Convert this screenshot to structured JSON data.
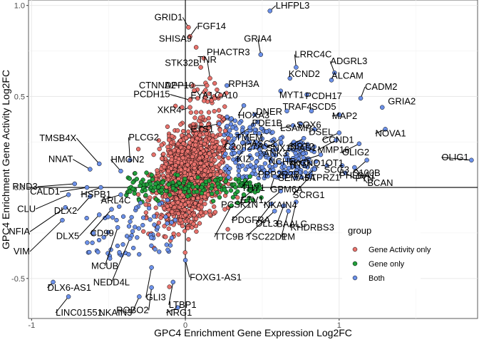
{
  "chart_data": {
    "type": "scatter",
    "xlabel": "GPC4 Enrichment Gene Expression Log2FC",
    "ylabel": "GPC4 Enrichment Gene Activity Log2FC",
    "xlim": [
      -1.02,
      1.9
    ],
    "ylim": [
      -0.72,
      1.03
    ],
    "xticks": [
      -1,
      0,
      1
    ],
    "yticks": [
      -0.5,
      0.0,
      0.5,
      1.0
    ],
    "xtick_labels": [
      "-1",
      "0",
      "1"
    ],
    "ytick_labels": [
      "-0.5",
      "0.0",
      "0.5",
      "1.0"
    ],
    "grid": true,
    "reference_lines": {
      "x": 0,
      "y": 0
    },
    "legend": {
      "title": "group",
      "placement": "bottom-right",
      "entries": [
        {
          "name": "Gene Activity only",
          "color": "#e8726c"
        },
        {
          "name": "Gene only",
          "color": "#22a03c"
        },
        {
          "name": "Both",
          "color": "#6b90e8"
        }
      ]
    },
    "labeled_points": [
      {
        "gene": "LHFPL3",
        "x": 0.55,
        "y": 0.97,
        "group": "Both"
      },
      {
        "gene": "GRID1",
        "x": 0.02,
        "y": 0.88,
        "group": "Gene Activity only"
      },
      {
        "gene": "FGF14",
        "x": 0.03,
        "y": 0.83,
        "group": "Gene Activity only"
      },
      {
        "gene": "SHISA9",
        "x": 0.07,
        "y": 0.77,
        "group": "Gene Activity only"
      },
      {
        "gene": "GRIA4",
        "x": 0.49,
        "y": 0.73,
        "group": "Both"
      },
      {
        "gene": "PHACTR3",
        "x": 0.12,
        "y": 0.71,
        "group": "Gene Activity only"
      },
      {
        "gene": "STK32B",
        "x": 0.1,
        "y": 0.66,
        "group": "Gene Activity only"
      },
      {
        "gene": "LRRC4C",
        "x": 0.72,
        "y": 0.66,
        "group": "Both"
      },
      {
        "gene": "ADGRL3",
        "x": 0.97,
        "y": 0.63,
        "group": "Both"
      },
      {
        "gene": "TNR",
        "x": 0.16,
        "y": 0.6,
        "group": "Gene Activity only"
      },
      {
        "gene": "KCND2",
        "x": 0.68,
        "y": 0.6,
        "group": "Both"
      },
      {
        "gene": "ALCAM",
        "x": 0.95,
        "y": 0.59,
        "group": "Both"
      },
      {
        "gene": "CTNNA2",
        "x": 0.05,
        "y": 0.56,
        "group": "Gene Activity only"
      },
      {
        "gene": "DPP10",
        "x": 0.14,
        "y": 0.56,
        "group": "Gene Activity only"
      },
      {
        "gene": "RPH3A",
        "x": 0.27,
        "y": 0.56,
        "group": "Both"
      },
      {
        "gene": "MYT1",
        "x": 0.62,
        "y": 0.53,
        "group": "Both"
      },
      {
        "gene": "PCDH17",
        "x": 0.79,
        "y": 0.51,
        "group": "Both"
      },
      {
        "gene": "CADM2",
        "x": 1.14,
        "y": 0.49,
        "group": "Both"
      },
      {
        "gene": "PCDH15",
        "x": 0.03,
        "y": 0.48,
        "group": "Gene Activity only"
      },
      {
        "gene": "EYA1",
        "x": 0.08,
        "y": 0.49,
        "group": "Gene Activity only"
      },
      {
        "gene": "CA10",
        "x": 0.19,
        "y": 0.49,
        "group": "Gene Activity only"
      },
      {
        "gene": "HOXA3",
        "x": 0.38,
        "y": 0.45,
        "group": "Both"
      },
      {
        "gene": "DNER",
        "x": 0.45,
        "y": 0.4,
        "group": "Both"
      },
      {
        "gene": "TRAF4",
        "x": 0.66,
        "y": 0.42,
        "group": "Both"
      },
      {
        "gene": "SCD5",
        "x": 0.82,
        "y": 0.42,
        "group": "Both"
      },
      {
        "gene": "MAP2",
        "x": 1.0,
        "y": 0.4,
        "group": "Both"
      },
      {
        "gene": "GRIA2",
        "x": 1.28,
        "y": 0.44,
        "group": "Both"
      },
      {
        "gene": "XKR4",
        "x": 0.03,
        "y": 0.44,
        "group": "Gene Activity only"
      },
      {
        "gene": "ETS1",
        "x": 0.22,
        "y": 0.35,
        "group": "Both"
      },
      {
        "gene": "TMEM",
        "x": 0.42,
        "y": 0.33,
        "group": "Both"
      },
      {
        "gene": "PDE1B",
        "x": 0.47,
        "y": 0.36,
        "group": "Both"
      },
      {
        "gene": "LSAMP",
        "x": 0.7,
        "y": 0.34,
        "group": "Both"
      },
      {
        "gene": "SOX6",
        "x": 0.75,
        "y": 0.35,
        "group": "Both"
      },
      {
        "gene": "DSEL",
        "x": 0.84,
        "y": 0.32,
        "group": "Both"
      },
      {
        "gene": "CCND1",
        "x": 1.0,
        "y": 0.3,
        "group": "Both"
      },
      {
        "gene": "NOVA1",
        "x": 1.3,
        "y": 0.32,
        "group": "Both"
      },
      {
        "gene": "C2orf27A",
        "x": 0.28,
        "y": 0.27,
        "group": "Gene Activity only"
      },
      {
        "gene": "ASC2",
        "x": 0.4,
        "y": 0.27,
        "group": "Both"
      },
      {
        "gene": "SNX10-AS1",
        "x": 0.62,
        "y": 0.27,
        "group": "Both"
      },
      {
        "gene": "SIRT2",
        "x": 0.77,
        "y": 0.27,
        "group": "Both"
      },
      {
        "gene": "MMP16",
        "x": 0.98,
        "y": 0.26,
        "group": "Both"
      },
      {
        "gene": "OLIG2",
        "x": 1.13,
        "y": 0.24,
        "group": "Both"
      },
      {
        "gene": "OLIG1",
        "x": 1.86,
        "y": 0.15,
        "group": "Both"
      },
      {
        "gene": "KIZ",
        "x": 0.38,
        "y": 0.21,
        "group": "Both"
      },
      {
        "gene": "ANK3",
        "x": 0.48,
        "y": 0.21,
        "group": "Both"
      },
      {
        "gene": "NCHE",
        "x": 0.57,
        "y": 0.18,
        "group": "Both"
      },
      {
        "gene": "NTM",
        "x": 0.7,
        "y": 0.16,
        "group": "Both"
      },
      {
        "gene": "KCNQ1OT1",
        "x": 0.88,
        "y": 0.18,
        "group": "Both"
      },
      {
        "gene": "S100B",
        "x": 1.18,
        "y": 0.15,
        "group": "Both"
      },
      {
        "gene": "SCG3",
        "x": 0.92,
        "y": 0.12,
        "group": "Both"
      },
      {
        "gene": "PHLDA1",
        "x": 1.02,
        "y": 0.12,
        "group": "Both"
      },
      {
        "gene": "BCAN",
        "x": 1.1,
        "y": 0.11,
        "group": "Both"
      },
      {
        "gene": "PPP2R2B",
        "x": 0.5,
        "y": 0.11,
        "group": "Both"
      },
      {
        "gene": "SEMA5A",
        "x": 0.64,
        "y": 0.09,
        "group": "Both"
      },
      {
        "gene": "PTPRZ1",
        "x": 0.84,
        "y": 0.1,
        "group": "Both"
      },
      {
        "gene": "PTN",
        "x": 1.04,
        "y": 0.08,
        "group": "Both"
      },
      {
        "gene": "THY1",
        "x": 0.42,
        "y": 0.06,
        "group": "Gene only"
      },
      {
        "gene": "GPM6A",
        "x": 0.58,
        "y": 0.06,
        "group": "Both"
      },
      {
        "gene": "SCRG1",
        "x": 0.81,
        "y": 0.06,
        "group": "Both"
      },
      {
        "gene": "PCSK1N",
        "x": 0.38,
        "y": -0.04,
        "group": "Gene only"
      },
      {
        "gene": "ETV1",
        "x": 0.46,
        "y": 0.0,
        "group": "Gene only"
      },
      {
        "gene": "NKAIN4",
        "x": 0.62,
        "y": -0.02,
        "group": "Both"
      },
      {
        "gene": "BAALC",
        "x": 0.64,
        "y": -0.1,
        "group": "Both"
      },
      {
        "gene": "KHDRBS3",
        "x": 0.72,
        "y": -0.08,
        "group": "Both"
      },
      {
        "gene": "PDGFRA",
        "x": 0.44,
        "y": -0.07,
        "group": "Gene only"
      },
      {
        "gene": "DLL3",
        "x": 0.56,
        "y": -0.09,
        "group": "Both"
      },
      {
        "gene": "TTC9B",
        "x": 0.3,
        "y": -0.1,
        "group": "Gene only"
      },
      {
        "gene": "TSC22D1",
        "x": 0.58,
        "y": -0.13,
        "group": "Both"
      },
      {
        "gene": "PM",
        "x": 0.67,
        "y": -0.13,
        "group": "Both"
      },
      {
        "gene": "TMSB4X",
        "x": -0.56,
        "y": 0.13,
        "group": "Both"
      },
      {
        "gene": "PLCG2",
        "x": -0.36,
        "y": 0.15,
        "group": "Both"
      },
      {
        "gene": "NNAT",
        "x": -0.62,
        "y": 0.1,
        "group": "Both"
      },
      {
        "gene": "HMGN2",
        "x": -0.42,
        "y": 0.09,
        "group": "Both"
      },
      {
        "gene": "RND3",
        "x": -0.72,
        "y": 0.02,
        "group": "Both"
      },
      {
        "gene": "CALD1",
        "x": -0.64,
        "y": 0.0,
        "group": "Both"
      },
      {
        "gene": "HSPB1",
        "x": -0.55,
        "y": 0.0,
        "group": "Both"
      },
      {
        "gene": "CLU",
        "x": -0.76,
        "y": -0.04,
        "group": "Both"
      },
      {
        "gene": "DLX2",
        "x": -0.62,
        "y": -0.05,
        "group": "Both"
      },
      {
        "gene": "ARL4C",
        "x": -0.42,
        "y": -0.04,
        "group": "Both"
      },
      {
        "gene": "NFIA",
        "x": -0.78,
        "y": -0.11,
        "group": "Both"
      },
      {
        "gene": "CD99",
        "x": -0.48,
        "y": -0.12,
        "group": "Both"
      },
      {
        "gene": "VIM",
        "x": -0.8,
        "y": -0.18,
        "group": "Both"
      },
      {
        "gene": "DLX5",
        "x": -0.56,
        "y": -0.15,
        "group": "Both"
      },
      {
        "gene": "MCUB",
        "x": -0.44,
        "y": -0.22,
        "group": "Both"
      },
      {
        "gene": "NEDD4L",
        "x": -0.36,
        "y": -0.28,
        "group": "Both"
      },
      {
        "gene": "GLI3",
        "x": -0.22,
        "y": -0.44,
        "group": "Both"
      },
      {
        "gene": "FOXG1-AS1",
        "x": 0.0,
        "y": -0.4,
        "group": "Both"
      },
      {
        "gene": "DLX6-AS1",
        "x": -0.86,
        "y": -0.52,
        "group": "Both"
      },
      {
        "gene": "ROBO2",
        "x": -0.22,
        "y": -0.55,
        "group": "Both"
      },
      {
        "gene": "LTBP1",
        "x": -0.08,
        "y": -0.52,
        "group": "Both"
      },
      {
        "gene": "LINC01551",
        "x": -0.76,
        "y": -0.6,
        "group": "Both"
      },
      {
        "gene": "NKAIN3",
        "x": -0.3,
        "y": -0.6,
        "group": "Both"
      },
      {
        "gene": "NRG1",
        "x": -0.05,
        "y": -0.66,
        "group": "Both"
      }
    ]
  }
}
